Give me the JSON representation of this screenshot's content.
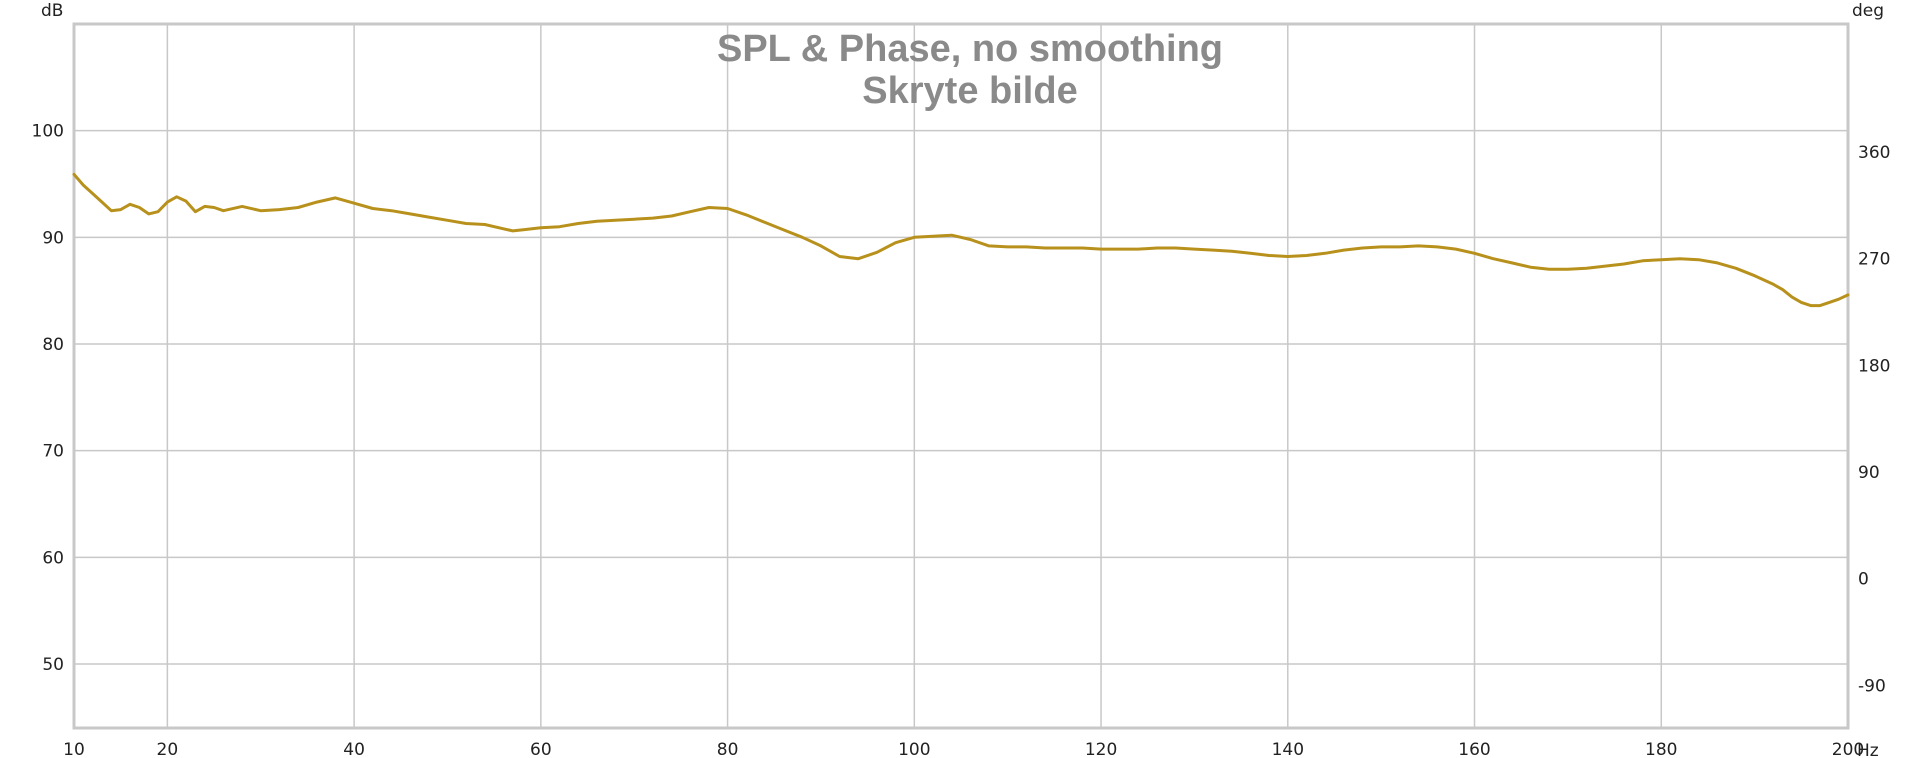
{
  "chart_data": {
    "type": "line",
    "title": "SPL & Phase, no smoothing",
    "subtitle": "Skryte bilde",
    "ylabel": "dB",
    "y2label": "deg",
    "xunit": "Hz",
    "xlim": [
      10,
      200
    ],
    "ylim": [
      44,
      110
    ],
    "y2lim": [
      -126,
      468
    ],
    "grid": true,
    "x_ticks": [
      10,
      20,
      40,
      60,
      80,
      100,
      120,
      140,
      160,
      180,
      200
    ],
    "y_ticks": [
      100,
      90,
      80,
      70,
      60,
      50
    ],
    "y2_ticks": [
      360,
      270,
      180,
      90,
      0,
      -90
    ],
    "series": [
      {
        "color": "#b8911c",
        "x": [
          10,
          11,
          12,
          13,
          14,
          15,
          16,
          17,
          18,
          19,
          20,
          21,
          22,
          23,
          24,
          25,
          26,
          28,
          30,
          32,
          34,
          36,
          38,
          40,
          42,
          44,
          46,
          48,
          50,
          52,
          54,
          56,
          57,
          58,
          60,
          62,
          64,
          66,
          68,
          70,
          72,
          74,
          76,
          78,
          80,
          82,
          84,
          86,
          88,
          90,
          92,
          94,
          96,
          98,
          100,
          102,
          104,
          106,
          108,
          110,
          112,
          114,
          116,
          118,
          120,
          122,
          124,
          126,
          128,
          130,
          132,
          134,
          136,
          138,
          140,
          142,
          144,
          146,
          148,
          150,
          152,
          154,
          156,
          158,
          160,
          162,
          164,
          166,
          168,
          170,
          172,
          174,
          176,
          178,
          180,
          182,
          184,
          186,
          188,
          190,
          192,
          193,
          194,
          195,
          196,
          197,
          198,
          199,
          200
        ],
        "y": [
          95.9,
          94.9,
          94.1,
          93.3,
          92.5,
          92.6,
          93.1,
          92.8,
          92.2,
          92.4,
          93.3,
          93.8,
          93.4,
          92.4,
          92.9,
          92.8,
          92.5,
          92.9,
          92.5,
          92.6,
          92.8,
          93.3,
          93.7,
          93.2,
          92.7,
          92.5,
          92.2,
          91.9,
          91.6,
          91.3,
          91.2,
          90.8,
          90.6,
          90.7,
          90.9,
          91.0,
          91.3,
          91.5,
          91.6,
          91.7,
          91.8,
          92.0,
          92.4,
          92.8,
          92.7,
          92.1,
          91.4,
          90.7,
          90.0,
          89.2,
          88.2,
          88.0,
          88.6,
          89.5,
          90.0,
          90.1,
          90.2,
          89.8,
          89.2,
          89.1,
          89.1,
          89.0,
          89.0,
          89.0,
          88.9,
          88.9,
          88.9,
          89.0,
          89.0,
          88.9,
          88.8,
          88.7,
          88.5,
          88.3,
          88.2,
          88.3,
          88.5,
          88.8,
          89.0,
          89.1,
          89.1,
          89.2,
          89.1,
          88.9,
          88.5,
          88.0,
          87.6,
          87.2,
          87.0,
          87.0,
          87.1,
          87.3,
          87.5,
          87.8,
          87.9,
          88.0,
          87.9,
          87.6,
          87.1,
          86.4,
          85.6,
          85.1,
          84.4,
          83.9,
          83.6,
          83.6,
          83.9,
          84.2,
          84.6
        ]
      }
    ]
  }
}
